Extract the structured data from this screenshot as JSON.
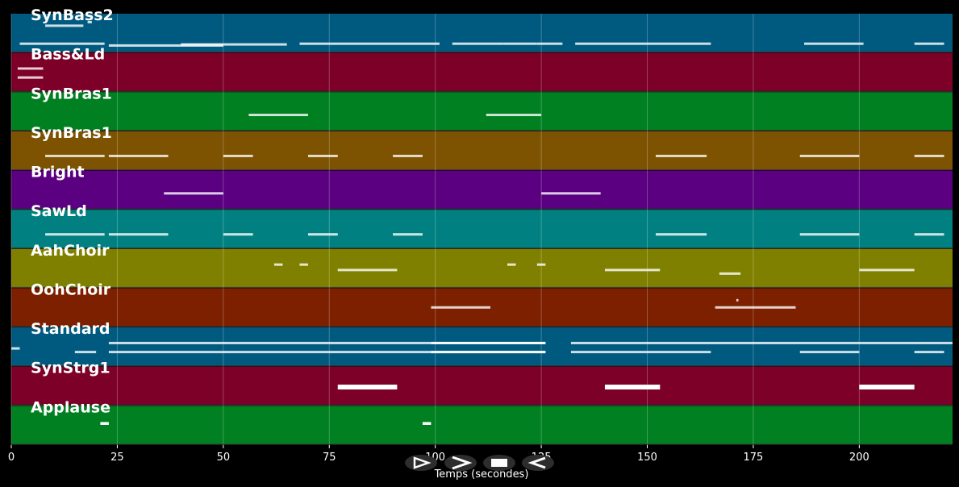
{
  "chart_data": {
    "type": "piano-roll",
    "xlabel": "Temps (secondes)",
    "xlim": [
      0,
      222
    ],
    "xticks": [
      0,
      25,
      50,
      75,
      100,
      125,
      150,
      175,
      200
    ],
    "grid": true,
    "background": "#000000",
    "tracks": [
      {
        "name": "SynBass2",
        "color": "#005a80",
        "notes": [
          [
            2,
            20,
            0.2
          ],
          [
            8,
            9,
            0.7
          ],
          [
            18,
            1,
            0.8
          ],
          [
            23,
            27,
            0.15
          ],
          [
            40,
            25,
            0.18
          ],
          [
            68,
            33,
            0.2
          ],
          [
            104,
            12,
            0.2
          ],
          [
            116,
            8,
            0.2
          ],
          [
            124,
            6,
            0.2
          ],
          [
            133,
            32,
            0.2
          ],
          [
            187,
            14,
            0.2
          ],
          [
            213,
            7,
            0.2
          ]
        ]
      },
      {
        "name": "Bass&Ld",
        "color": "#7d0028",
        "notes": [
          [
            1.5,
            6,
            0.6
          ],
          [
            1.5,
            6,
            0.35
          ]
        ]
      },
      {
        "name": "SynBras1",
        "color": "#008020",
        "notes": [
          [
            56,
            14,
            0.4
          ],
          [
            112,
            13,
            0.4
          ]
        ]
      },
      {
        "name": "SynBras1",
        "color": "#7d5200",
        "notes": [
          [
            8,
            14,
            0.35
          ],
          [
            23,
            14,
            0.35
          ],
          [
            50,
            7,
            0.35
          ],
          [
            70,
            7,
            0.35
          ],
          [
            90,
            7,
            0.35
          ],
          [
            152,
            12,
            0.35
          ],
          [
            186,
            14,
            0.35
          ],
          [
            213,
            7,
            0.35
          ]
        ]
      },
      {
        "name": "Bright",
        "color": "#5a0080",
        "notes": [
          [
            36,
            14,
            0.4
          ],
          [
            125,
            14,
            0.4
          ]
        ]
      },
      {
        "name": "SawLd",
        "color": "#008080",
        "notes": [
          [
            8,
            14,
            0.35
          ],
          [
            23,
            14,
            0.35
          ],
          [
            50,
            7,
            0.35
          ],
          [
            70,
            7,
            0.35
          ],
          [
            90,
            7,
            0.35
          ],
          [
            152,
            12,
            0.35
          ],
          [
            186,
            14,
            0.35
          ],
          [
            213,
            7,
            0.35
          ]
        ]
      },
      {
        "name": "AahChoir",
        "color": "#808000",
        "notes": [
          [
            62,
            2,
            0.6
          ],
          [
            68,
            2,
            0.6
          ],
          [
            77,
            14,
            0.45
          ],
          [
            117,
            2,
            0.6
          ],
          [
            124,
            2,
            0.6
          ],
          [
            140,
            13,
            0.45
          ],
          [
            167,
            5,
            0.35
          ],
          [
            200,
            13,
            0.45
          ]
        ]
      },
      {
        "name": "OohChoir",
        "color": "#7d2000",
        "notes": [
          [
            99,
            14,
            0.5
          ],
          [
            166,
            19,
            0.5
          ],
          [
            171,
            0.5,
            0.7
          ]
        ]
      },
      {
        "name": "Standard",
        "color": "#005a80",
        "notes": [
          [
            0,
            2,
            0.45
          ],
          [
            15,
            5,
            0.35
          ],
          [
            23,
            103,
            0.35
          ],
          [
            23,
            103,
            0.6
          ],
          [
            99,
            27,
            0.35
          ],
          [
            99,
            27,
            0.6
          ],
          [
            132,
            33,
            0.35
          ],
          [
            132,
            90,
            0.6
          ],
          [
            186,
            14,
            0.35
          ],
          [
            213,
            7,
            0.35
          ]
        ]
      },
      {
        "name": "SynStrg1",
        "color": "#7d0028",
        "notes": [
          [
            77,
            14,
            0.5
          ],
          [
            140,
            13,
            0.5
          ],
          [
            200,
            13,
            0.5
          ]
        ]
      },
      {
        "name": "Applause",
        "color": "#008020",
        "notes": [
          [
            21,
            2,
            0.55
          ],
          [
            97,
            2,
            0.55
          ]
        ]
      }
    ]
  },
  "controls": [
    {
      "name": "play-button",
      "symbol": "play"
    },
    {
      "name": "forward-button",
      "symbol": "chevron"
    },
    {
      "name": "stop-button",
      "symbol": "stop"
    },
    {
      "name": "rewind-button",
      "symbol": "rewind"
    }
  ]
}
